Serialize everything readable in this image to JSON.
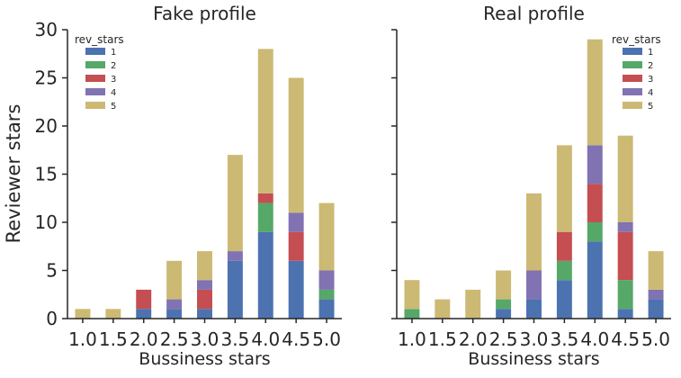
{
  "ylabel_shared": "Reviewer stars",
  "chart_data": [
    {
      "type": "bar",
      "stacked": true,
      "title": "Fake profile",
      "xlabel": "Bussiness stars",
      "ylabel": "Reviewer stars",
      "categories": [
        "1.0",
        "1.5",
        "2.0",
        "2.5",
        "3.0",
        "3.5",
        "4.0",
        "4.5",
        "5.0"
      ],
      "ylim": [
        0,
        30
      ],
      "yticks": [
        0,
        5,
        10,
        15,
        20,
        25,
        30
      ],
      "legend_title": "rev_stars",
      "legend_position": "top-left",
      "series": [
        {
          "name": "1",
          "color": "#4c72b0",
          "values": [
            0,
            0,
            1,
            1,
            1,
            6,
            9,
            6,
            2
          ]
        },
        {
          "name": "2",
          "color": "#55a868",
          "values": [
            0,
            0,
            0,
            0,
            0,
            0,
            3,
            0,
            1
          ]
        },
        {
          "name": "3",
          "color": "#c44e52",
          "values": [
            0,
            0,
            2,
            0,
            2,
            0,
            1,
            3,
            0
          ]
        },
        {
          "name": "4",
          "color": "#8172b2",
          "values": [
            0,
            0,
            0,
            1,
            1,
            1,
            0,
            2,
            2
          ]
        },
        {
          "name": "5",
          "color": "#ccb974",
          "values": [
            1,
            1,
            0,
            4,
            3,
            10,
            15,
            14,
            7
          ]
        }
      ]
    },
    {
      "type": "bar",
      "stacked": true,
      "title": "Real profile",
      "xlabel": "Bussiness stars",
      "categories": [
        "1.0",
        "1.5",
        "2.0",
        "2.5",
        "3.0",
        "3.5",
        "4.0",
        "4.5",
        "5.0"
      ],
      "ylim": [
        0,
        30
      ],
      "yticks": [
        0,
        5,
        10,
        15,
        20,
        25,
        30
      ],
      "legend_title": "rev_stars",
      "legend_position": "top-right",
      "series": [
        {
          "name": "1",
          "color": "#4c72b0",
          "values": [
            0,
            0,
            0,
            1,
            2,
            4,
            8,
            1,
            2
          ]
        },
        {
          "name": "2",
          "color": "#55a868",
          "values": [
            1,
            0,
            0,
            1,
            0,
            2,
            2,
            3,
            0
          ]
        },
        {
          "name": "3",
          "color": "#c44e52",
          "values": [
            0,
            0,
            0,
            0,
            0,
            3,
            4,
            5,
            0
          ]
        },
        {
          "name": "4",
          "color": "#8172b2",
          "values": [
            0,
            0,
            0,
            0,
            3,
            0,
            4,
            1,
            1
          ]
        },
        {
          "name": "5",
          "color": "#ccb974",
          "values": [
            3,
            2,
            3,
            3,
            8,
            9,
            11,
            9,
            4
          ]
        }
      ]
    }
  ]
}
